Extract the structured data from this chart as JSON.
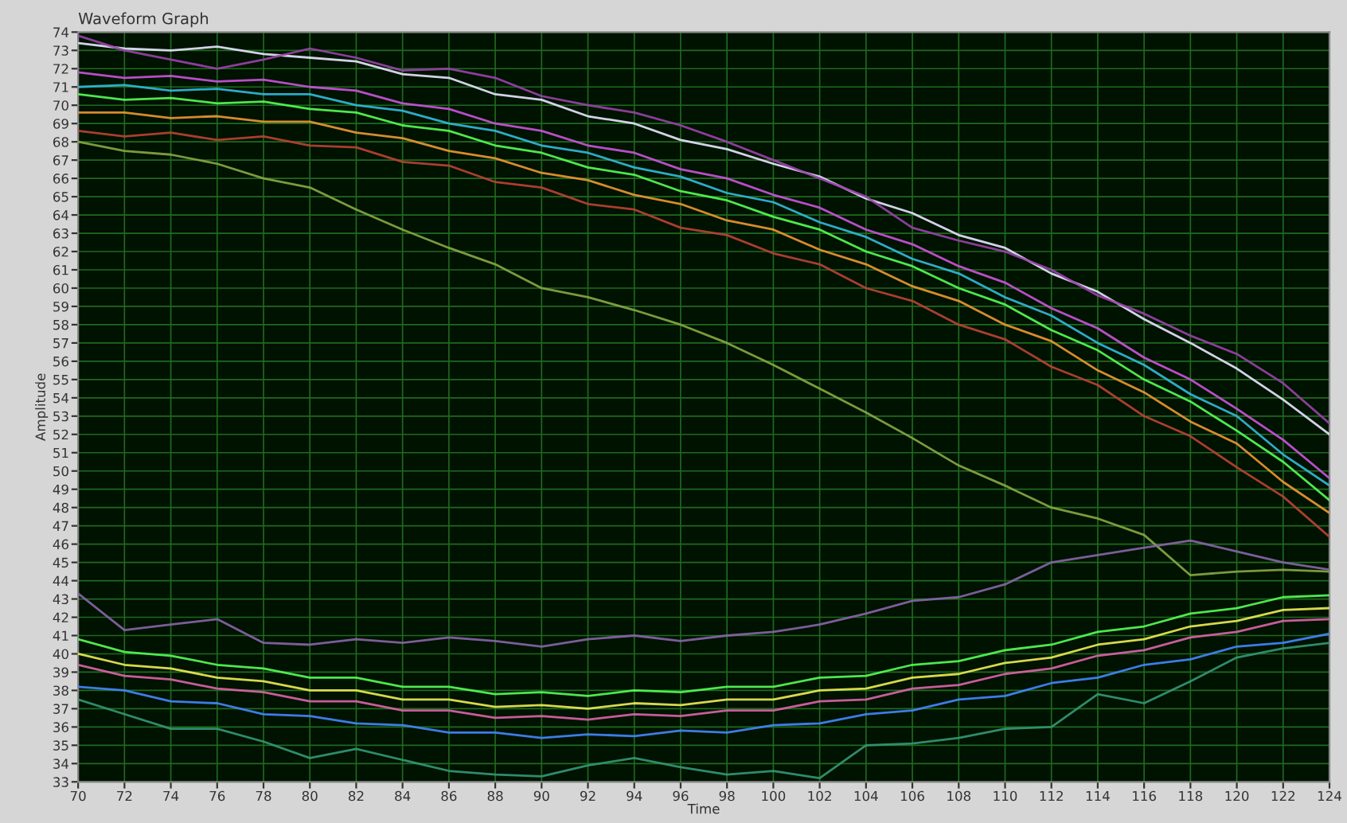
{
  "chart_data": {
    "type": "line",
    "title": "Waveform Graph",
    "xlabel": "Time",
    "ylabel": "Amplitude",
    "x": [
      70,
      72,
      74,
      76,
      78,
      80,
      82,
      84,
      86,
      88,
      90,
      92,
      94,
      96,
      98,
      100,
      102,
      104,
      106,
      108,
      110,
      112,
      114,
      116,
      118,
      120,
      122,
      124
    ],
    "series": [
      {
        "color": "#e8e8ff",
        "values": [
          73.4,
          73.1,
          73.0,
          73.2,
          72.8,
          72.6,
          72.4,
          71.7,
          71.5,
          70.6,
          70.3,
          69.4,
          69.0,
          68.1,
          67.6,
          66.8,
          66.1,
          64.9,
          64.1,
          62.9,
          62.2,
          60.8,
          59.8,
          58.3,
          57.0,
          55.6,
          53.9,
          52.0
        ]
      },
      {
        "color": "#cc55dd",
        "values": [
          71.8,
          71.5,
          71.6,
          71.3,
          71.4,
          71.0,
          70.8,
          70.1,
          69.8,
          69.0,
          68.6,
          67.8,
          67.4,
          66.5,
          66.0,
          65.1,
          64.4,
          63.2,
          62.4,
          61.2,
          60.3,
          58.9,
          57.8,
          56.2,
          55.0,
          53.4,
          51.7,
          49.6
        ]
      },
      {
        "color": "#55ff55",
        "values": [
          70.6,
          70.3,
          70.4,
          70.1,
          70.2,
          69.8,
          69.6,
          68.9,
          68.6,
          67.8,
          67.4,
          66.6,
          66.2,
          65.3,
          64.8,
          63.9,
          63.2,
          62.0,
          61.2,
          60.0,
          59.1,
          57.7,
          56.6,
          55.0,
          53.8,
          52.2,
          50.5,
          48.4
        ]
      },
      {
        "color": "#33bbdd",
        "values": [
          71.0,
          71.1,
          70.8,
          70.9,
          70.6,
          70.6,
          70.0,
          69.7,
          69.0,
          68.6,
          67.8,
          67.4,
          66.6,
          66.1,
          65.2,
          64.7,
          63.6,
          62.8,
          61.6,
          60.8,
          59.5,
          58.5,
          57.0,
          55.8,
          54.2,
          53.0,
          50.9,
          49.2
        ]
      },
      {
        "color": "#ee9933",
        "values": [
          69.6,
          69.6,
          69.3,
          69.4,
          69.1,
          69.1,
          68.5,
          68.2,
          67.5,
          67.1,
          66.3,
          65.9,
          65.1,
          64.6,
          63.7,
          63.2,
          62.1,
          61.3,
          60.1,
          59.3,
          58.0,
          57.1,
          55.5,
          54.3,
          52.7,
          51.5,
          49.4,
          47.7
        ]
      },
      {
        "color": "#bb4433",
        "values": [
          68.6,
          68.3,
          68.5,
          68.1,
          68.3,
          67.8,
          67.7,
          66.9,
          66.7,
          65.8,
          65.5,
          64.6,
          64.3,
          63.3,
          62.9,
          61.9,
          61.3,
          60.0,
          59.3,
          58.0,
          57.2,
          55.7,
          54.7,
          53.0,
          51.9,
          50.2,
          48.6,
          46.4
        ]
      },
      {
        "color": "#9944aa",
        "values": [
          73.8,
          73.0,
          72.5,
          72.0,
          72.5,
          73.1,
          72.6,
          71.9,
          72.0,
          71.5,
          70.5,
          70.0,
          69.6,
          68.9,
          68.0,
          67.0,
          66.0,
          65.0,
          63.3,
          62.6,
          62.0,
          61.0,
          59.6,
          58.6,
          57.4,
          56.4,
          54.8,
          52.6
        ]
      },
      {
        "color": "#88aa44",
        "values": [
          68.0,
          67.5,
          67.3,
          66.8,
          66.0,
          65.5,
          64.3,
          63.2,
          62.2,
          61.3,
          60.0,
          59.5,
          58.8,
          58.0,
          57.0,
          55.8,
          54.5,
          53.2,
          51.8,
          50.3,
          49.2,
          48.0,
          47.4,
          46.5,
          44.3,
          44.5,
          44.6,
          44.5
        ]
      },
      {
        "color": "#55ff55",
        "values": [
          40.8,
          40.1,
          39.9,
          39.4,
          39.2,
          38.7,
          38.7,
          38.2,
          38.2,
          37.8,
          37.9,
          37.7,
          38.0,
          37.9,
          38.2,
          38.2,
          38.7,
          38.8,
          39.4,
          39.6,
          40.2,
          40.5,
          41.2,
          41.5,
          42.2,
          42.5,
          43.1,
          43.2
        ]
      },
      {
        "color": "#dd66aa",
        "values": [
          39.4,
          38.8,
          38.6,
          38.1,
          37.9,
          37.4,
          37.4,
          36.9,
          36.9,
          36.5,
          36.6,
          36.4,
          36.7,
          36.6,
          36.9,
          36.9,
          37.4,
          37.5,
          38.1,
          38.3,
          38.9,
          39.2,
          39.9,
          40.2,
          40.9,
          41.2,
          41.8,
          41.9
        ]
      },
      {
        "color": "#4488ff",
        "values": [
          38.2,
          38.0,
          37.4,
          37.3,
          36.7,
          36.6,
          36.2,
          36.1,
          35.7,
          35.7,
          35.4,
          35.6,
          35.5,
          35.8,
          35.7,
          36.1,
          36.2,
          36.7,
          36.9,
          37.5,
          37.7,
          38.4,
          38.7,
          39.4,
          39.7,
          40.4,
          40.6,
          41.1
        ]
      },
      {
        "color": "#eeee55",
        "values": [
          40.0,
          39.4,
          39.2,
          38.7,
          38.5,
          38.0,
          38.0,
          37.5,
          37.5,
          37.1,
          37.2,
          37.0,
          37.3,
          37.2,
          37.5,
          37.5,
          38.0,
          38.1,
          38.7,
          38.9,
          39.5,
          39.8,
          40.5,
          40.8,
          41.5,
          41.8,
          42.4,
          42.5
        ]
      },
      {
        "color": "#8866aa",
        "values": [
          43.3,
          41.3,
          41.6,
          41.9,
          40.6,
          40.5,
          40.8,
          40.6,
          40.9,
          40.7,
          40.4,
          40.8,
          41.0,
          40.7,
          41.0,
          41.2,
          41.6,
          42.2,
          42.9,
          43.1,
          43.8,
          45.0,
          45.4,
          45.8,
          46.2,
          45.6,
          45.0,
          44.6
        ]
      },
      {
        "color": "#339977",
        "values": [
          37.5,
          36.7,
          35.9,
          35.9,
          35.2,
          34.3,
          34.8,
          34.2,
          33.6,
          33.4,
          33.3,
          33.9,
          34.3,
          33.8,
          33.4,
          33.6,
          33.2,
          35.0,
          35.1,
          35.4,
          35.9,
          36.0,
          37.8,
          37.3,
          38.5,
          39.8,
          40.3,
          40.6
        ]
      }
    ],
    "xlim": [
      70,
      124
    ],
    "xticks": [
      70,
      72,
      74,
      76,
      78,
      80,
      82,
      84,
      86,
      88,
      90,
      92,
      94,
      96,
      98,
      100,
      102,
      104,
      106,
      108,
      110,
      112,
      114,
      116,
      118,
      120,
      122,
      124
    ],
    "ylim": [
      33,
      74
    ],
    "yticks": [
      33,
      34,
      35,
      36,
      37,
      38,
      39,
      40,
      41,
      42,
      43,
      44,
      45,
      46,
      47,
      48,
      49,
      50,
      51,
      52,
      53,
      54,
      55,
      56,
      57,
      58,
      59,
      60,
      61,
      62,
      63,
      64,
      65,
      66,
      67,
      68,
      69,
      70,
      71,
      72,
      73,
      74
    ],
    "grid": true,
    "line_style": "solid",
    "marker": "none"
  }
}
